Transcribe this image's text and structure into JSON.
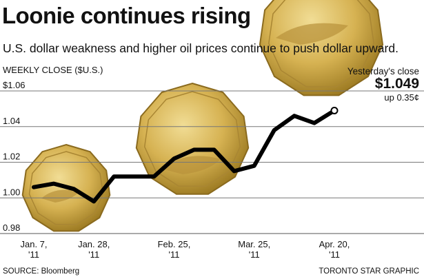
{
  "title": "Loonie continues rising",
  "subtitle": "U.S. dollar weakness and higher oil prices continue to push dollar upward.",
  "source": "SOURCE: Bloomberg",
  "credit": "TORONTO STAR GRAPHIC",
  "callout": {
    "label": "Yesterday's close",
    "value": "$1.049",
    "change": "up 0.35¢"
  },
  "colors": {
    "line": "#000000",
    "grid": "#777777",
    "coin": "#c9a23a"
  },
  "chart_data": {
    "type": "line",
    "title": "Loonie continues rising",
    "ylabel": "WEEKLY CLOSE ($U.S.)",
    "ylim": [
      0.98,
      1.06
    ],
    "grid": true,
    "y_ticks": [
      "$1.06",
      "1.04",
      "1.02",
      "1.00",
      "0.98"
    ],
    "y_tick_values": [
      1.06,
      1.04,
      1.02,
      1.0,
      0.98
    ],
    "x_ticks": [
      {
        "line1": "Jan. 7,",
        "line2": "'11",
        "index": 0
      },
      {
        "line1": "Jan. 28,",
        "line2": "'11",
        "index": 3
      },
      {
        "line1": "Feb. 25,",
        "line2": "'11",
        "index": 7
      },
      {
        "line1": "Mar. 25,",
        "line2": "'11",
        "index": 11
      },
      {
        "line1": "Apr. 20,",
        "line2": "'11",
        "index": 15
      }
    ],
    "x": [
      "Jan. 7",
      "Jan. 14",
      "Jan. 21",
      "Jan. 28",
      "Feb. 4",
      "Feb. 11",
      "Feb. 18",
      "Feb. 25",
      "Mar. 4",
      "Mar. 11",
      "Mar. 18",
      "Mar. 25",
      "Apr. 1",
      "Apr. 8",
      "Apr. 15",
      "Apr. 20"
    ],
    "values": [
      1.006,
      1.008,
      1.005,
      0.998,
      1.012,
      1.012,
      1.012,
      1.022,
      1.027,
      1.027,
      1.015,
      1.018,
      1.038,
      1.046,
      1.042,
      1.049
    ]
  }
}
